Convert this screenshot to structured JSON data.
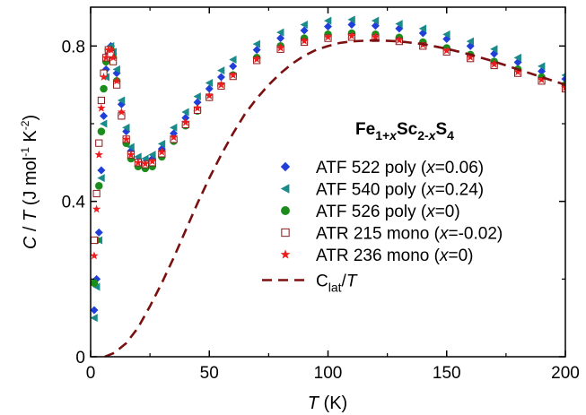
{
  "chart_data": {
    "type": "scatter",
    "title": "",
    "xlabel_var": "T",
    "xlabel_unit": " (K)",
    "ylabel": "C / T (J mol-1 K-2)",
    "ylabel_var1": "C",
    "ylabel_sep": " / ",
    "ylabel_var2": "T",
    "ylabel_open": " (J mol",
    "ylabel_sup1": "-1",
    "ylabel_mid": " K",
    "ylabel_sup2": "-2",
    "ylabel_close": ")",
    "xlim": [
      0,
      200
    ],
    "ylim": [
      0,
      0.9
    ],
    "xticks": [
      0,
      50,
      100,
      150,
      200
    ],
    "yticks": [
      0,
      0.4,
      0.8
    ],
    "xtick_labels": [
      "0",
      "50",
      "100",
      "150",
      "200"
    ],
    "ytick_labels": [
      "0",
      "0.4",
      "0.8"
    ],
    "grid": false,
    "legend_position": "center-right",
    "legend_title": {
      "p1": "Fe",
      "s1": "1+",
      "s2": "x",
      "p2": "Sc",
      "s3": "2-",
      "s4": "x",
      "p3": "S",
      "s5": "4"
    },
    "series": [
      {
        "name": "ATF 522 poly (x=0.06)",
        "legend": {
          "pre": "ATF 522 poly (",
          "var": "x",
          "post": "=0.06)"
        },
        "marker": "diamond",
        "color": "#1f3fd8",
        "x": [
          1.5,
          2.5,
          3.5,
          4.5,
          5.5,
          6.5,
          7.5,
          8.5,
          9.5,
          11,
          13,
          15,
          17,
          20,
          23,
          26,
          30,
          35,
          40,
          45,
          50,
          55,
          60,
          70,
          80,
          90,
          100,
          110,
          120,
          130,
          140,
          150,
          160,
          170,
          180,
          190,
          200
        ],
        "y": [
          0.12,
          0.2,
          0.32,
          0.48,
          0.62,
          0.74,
          0.79,
          0.8,
          0.78,
          0.73,
          0.65,
          0.58,
          0.53,
          0.505,
          0.5,
          0.51,
          0.535,
          0.575,
          0.615,
          0.655,
          0.69,
          0.72,
          0.748,
          0.79,
          0.82,
          0.84,
          0.85,
          0.855,
          0.852,
          0.845,
          0.833,
          0.818,
          0.8,
          0.78,
          0.758,
          0.735,
          0.715
        ]
      },
      {
        "name": "ATF 540 poly (x=0.24)",
        "legend": {
          "pre": "ATF 540 poly (",
          "var": "x",
          "post": "=0.24)"
        },
        "marker": "triangle-left",
        "color": "#1a8a8a",
        "x": [
          1.5,
          2.5,
          3.5,
          4.5,
          5.5,
          6.5,
          7.5,
          8.5,
          9.5,
          11,
          13,
          15,
          17,
          20,
          23,
          26,
          30,
          35,
          40,
          45,
          50,
          55,
          60,
          70,
          80,
          90,
          100,
          110,
          120,
          130,
          140,
          150,
          160,
          170,
          180,
          190,
          200
        ],
        "y": [
          0.1,
          0.18,
          0.3,
          0.46,
          0.6,
          0.72,
          0.78,
          0.8,
          0.785,
          0.74,
          0.66,
          0.59,
          0.54,
          0.515,
          0.51,
          0.52,
          0.548,
          0.59,
          0.63,
          0.67,
          0.705,
          0.737,
          0.765,
          0.805,
          0.835,
          0.855,
          0.865,
          0.868,
          0.865,
          0.857,
          0.845,
          0.83,
          0.812,
          0.792,
          0.77,
          0.748,
          0.725
        ]
      },
      {
        "name": "ATF 526 poly (x=0)",
        "legend": {
          "pre": "ATF 526 poly (",
          "var": "x",
          "post": "=0)"
        },
        "marker": "circle",
        "color": "#1c8c1c",
        "x": [
          1.5,
          2.5,
          3.5,
          4.5,
          5.5,
          6.5,
          7.5,
          8.5,
          9.5,
          11,
          13,
          15,
          17,
          20,
          23,
          26,
          30,
          35,
          40,
          45,
          50,
          55,
          60,
          70,
          80,
          90,
          100,
          110,
          120,
          130,
          140,
          150,
          160,
          170,
          180,
          190,
          200
        ],
        "y": [
          0.19,
          0.3,
          0.44,
          0.58,
          0.69,
          0.76,
          0.79,
          0.79,
          0.77,
          0.71,
          0.62,
          0.55,
          0.51,
          0.49,
          0.485,
          0.49,
          0.515,
          0.555,
          0.595,
          0.633,
          0.668,
          0.698,
          0.725,
          0.77,
          0.8,
          0.82,
          0.83,
          0.833,
          0.83,
          0.822,
          0.81,
          0.795,
          0.778,
          0.76,
          0.74,
          0.72,
          0.7
        ]
      },
      {
        "name": "ATR 215 mono (x=-0.02)",
        "legend": {
          "pre": "ATR 215 mono (",
          "var": "x",
          "post": "=-0.02)"
        },
        "marker": "square-open",
        "color": "#8b1a1a",
        "x": [
          1.5,
          2.5,
          3.5,
          4.5,
          5.5,
          6.5,
          7.5,
          8.5,
          9.5,
          11,
          13,
          15,
          17,
          20,
          23,
          26,
          30,
          35,
          40,
          45,
          50,
          55,
          60,
          70,
          80,
          90,
          100,
          110,
          120,
          130,
          140,
          150,
          160,
          170,
          180,
          190,
          200
        ],
        "y": [
          0.3,
          0.42,
          0.55,
          0.66,
          0.73,
          0.77,
          0.79,
          0.78,
          0.76,
          0.7,
          0.62,
          0.56,
          0.52,
          0.5,
          0.495,
          0.5,
          0.523,
          0.56,
          0.598,
          0.635,
          0.668,
          0.697,
          0.722,
          0.763,
          0.792,
          0.81,
          0.82,
          0.823,
          0.82,
          0.812,
          0.8,
          0.785,
          0.768,
          0.75,
          0.73,
          0.71,
          0.69
        ]
      },
      {
        "name": "ATR 236 mono (x=0)",
        "legend": {
          "pre": "ATR 236 mono (",
          "var": "x",
          "post": "=0)"
        },
        "marker": "star",
        "color": "#ee1c1c",
        "x": [
          1.5,
          2.5,
          3.5,
          4.5,
          5.5,
          6.5,
          7.5,
          8.5,
          9.5,
          11,
          13,
          15,
          17,
          20,
          23,
          26,
          30,
          35,
          40,
          45,
          50,
          55,
          60,
          70,
          80,
          90,
          100,
          110,
          120,
          130,
          140,
          150,
          160,
          170,
          180,
          190,
          200
        ],
        "y": [
          0.26,
          0.38,
          0.52,
          0.64,
          0.72,
          0.77,
          0.79,
          0.79,
          0.77,
          0.71,
          0.63,
          0.56,
          0.52,
          0.5,
          0.497,
          0.503,
          0.527,
          0.565,
          0.603,
          0.64,
          0.672,
          0.7,
          0.725,
          0.766,
          0.795,
          0.813,
          0.823,
          0.826,
          0.823,
          0.815,
          0.803,
          0.788,
          0.771,
          0.753,
          0.733,
          0.713,
          0.693
        ]
      },
      {
        "name": "Clat/T",
        "legend": {
          "pre": "C",
          "sub": "lat",
          "sep": "/",
          "var": "T"
        },
        "marker": "dashed-line",
        "color": "#7a1010",
        "x": [
          6,
          10,
          15,
          20,
          25,
          30,
          35,
          40,
          45,
          50,
          55,
          60,
          65,
          70,
          75,
          80,
          85,
          90,
          95,
          100,
          105,
          110,
          120,
          130,
          140,
          150,
          160,
          170,
          180,
          190,
          200
        ],
        "y": [
          0.0,
          0.01,
          0.035,
          0.075,
          0.13,
          0.19,
          0.255,
          0.325,
          0.395,
          0.46,
          0.52,
          0.575,
          0.625,
          0.665,
          0.7,
          0.73,
          0.755,
          0.775,
          0.79,
          0.8,
          0.808,
          0.812,
          0.815,
          0.812,
          0.805,
          0.793,
          0.778,
          0.76,
          0.74,
          0.72,
          0.7
        ]
      }
    ]
  }
}
